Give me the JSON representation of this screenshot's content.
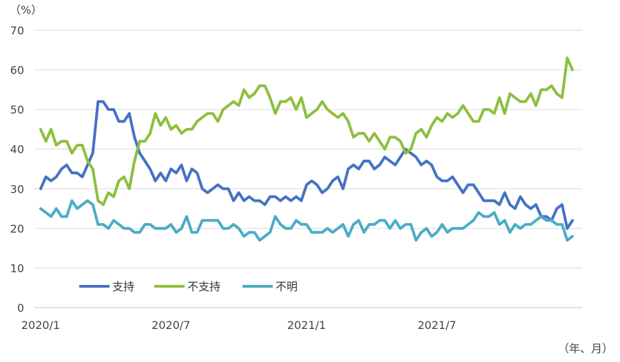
{
  "chart_data": {
    "type": "line",
    "y_unit_label": "（%）",
    "x_unit_label": "（年、月）",
    "ylim": [
      0,
      70
    ],
    "y_ticks": [
      0,
      10,
      20,
      30,
      40,
      50,
      60,
      70
    ],
    "grid": true,
    "legend_placement": "bottom-left",
    "x_tick_labels": [
      {
        "label": "2020/1",
        "index": 0
      },
      {
        "label": "2020/7",
        "index": 25
      },
      {
        "label": "2021/1",
        "index": 51
      },
      {
        "label": "2021/7",
        "index": 76
      }
    ],
    "series": [
      {
        "name": "支持",
        "color": "#4472C4",
        "values": [
          30,
          33,
          32,
          33,
          35,
          36,
          34,
          34,
          33,
          36,
          39,
          52,
          52,
          50,
          50,
          47,
          47,
          49,
          43,
          39,
          37,
          35,
          32,
          34,
          32,
          35,
          34,
          36,
          32,
          35,
          34,
          30,
          29,
          30,
          31,
          30,
          30,
          27,
          29,
          27,
          28,
          27,
          27,
          26,
          28,
          28,
          27,
          28,
          27,
          28,
          27,
          31,
          32,
          31,
          29,
          30,
          32,
          33,
          30,
          35,
          36,
          35,
          37,
          37,
          35,
          36,
          38,
          37,
          36,
          38,
          40,
          39,
          38,
          36,
          37,
          36,
          33,
          32,
          32,
          33,
          31,
          29,
          31,
          31,
          29,
          27,
          27,
          27,
          26,
          29,
          26,
          25,
          28,
          26,
          25,
          26,
          23,
          23,
          22,
          25,
          26,
          20,
          22
        ]
      },
      {
        "name": "不支持",
        "color": "#8CBF3F",
        "values": [
          45,
          42,
          45,
          41,
          42,
          42,
          39,
          41,
          41,
          37,
          35,
          27,
          26,
          29,
          28,
          32,
          33,
          30,
          37,
          42,
          42,
          44,
          49,
          46,
          48,
          45,
          46,
          44,
          45,
          45,
          47,
          48,
          49,
          49,
          47,
          50,
          51,
          52,
          51,
          55,
          53,
          54,
          56,
          56,
          53,
          49,
          52,
          52,
          53,
          50,
          53,
          48,
          49,
          50,
          52,
          50,
          49,
          48,
          49,
          47,
          43,
          44,
          44,
          42,
          44,
          42,
          40,
          43,
          43,
          42,
          39,
          40,
          44,
          45,
          43,
          46,
          48,
          47,
          49,
          48,
          49,
          51,
          49,
          47,
          47,
          50,
          50,
          49,
          53,
          49,
          54,
          53,
          52,
          52,
          54,
          51,
          55,
          55,
          56,
          54,
          53,
          63,
          60
        ]
      },
      {
        "name": "不明",
        "color": "#4BACC6",
        "values": [
          25,
          24,
          23,
          25,
          23,
          23,
          27,
          25,
          26,
          27,
          26,
          21,
          21,
          20,
          22,
          21,
          20,
          20,
          19,
          19,
          21,
          21,
          20,
          20,
          20,
          21,
          19,
          20,
          23,
          19,
          19,
          22,
          22,
          22,
          22,
          20,
          20,
          21,
          20,
          18,
          19,
          19,
          17,
          18,
          19,
          23,
          21,
          20,
          20,
          22,
          21,
          21,
          19,
          19,
          19,
          20,
          19,
          20,
          21,
          18,
          21,
          22,
          19,
          21,
          21,
          22,
          22,
          20,
          22,
          20,
          21,
          21,
          17,
          19,
          20,
          18,
          19,
          21,
          19,
          20,
          20,
          20,
          21,
          22,
          24,
          23,
          23,
          24,
          21,
          22,
          19,
          21,
          20,
          21,
          21,
          22,
          23,
          22,
          22,
          21,
          21,
          17,
          18
        ]
      }
    ]
  }
}
